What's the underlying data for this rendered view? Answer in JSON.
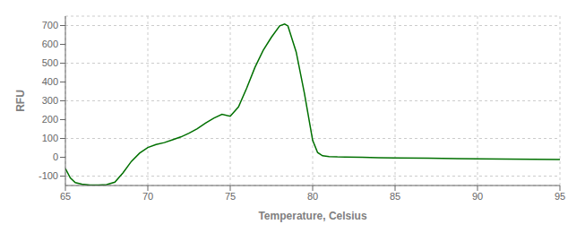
{
  "chart_data": {
    "type": "line",
    "xlabel": "Temperature, Celsius",
    "ylabel": "RFU",
    "color": "#007000",
    "xlim": [
      65,
      95
    ],
    "ylim": [
      -150,
      750
    ],
    "xticks": [
      65,
      70,
      75,
      80,
      85,
      90,
      95
    ],
    "yticks": [
      -100,
      0,
      100,
      200,
      300,
      400,
      500,
      600,
      700
    ],
    "grid": true,
    "x": [
      65.0,
      65.3,
      65.6,
      66.0,
      66.5,
      67.0,
      67.5,
      68.0,
      68.5,
      69.0,
      69.5,
      70.0,
      70.5,
      71.0,
      71.5,
      72.0,
      72.5,
      73.0,
      73.5,
      74.0,
      74.5,
      75.0,
      75.5,
      76.0,
      76.5,
      77.0,
      77.5,
      78.0,
      78.3,
      78.5,
      79.0,
      79.5,
      80.0,
      80.3,
      80.6,
      81.0,
      81.5,
      82.0,
      83.0,
      84.0,
      85.0,
      87.0,
      90.0,
      95.0
    ],
    "values": [
      -60,
      -110,
      -135,
      -143,
      -148,
      -148,
      -145,
      -132,
      -82,
      -22,
      22,
      52,
      68,
      78,
      93,
      108,
      128,
      152,
      182,
      208,
      228,
      218,
      268,
      368,
      478,
      568,
      638,
      698,
      708,
      698,
      560,
      340,
      90,
      25,
      8,
      4,
      2,
      1,
      0,
      -2,
      -3,
      -5,
      -8,
      -12
    ]
  }
}
